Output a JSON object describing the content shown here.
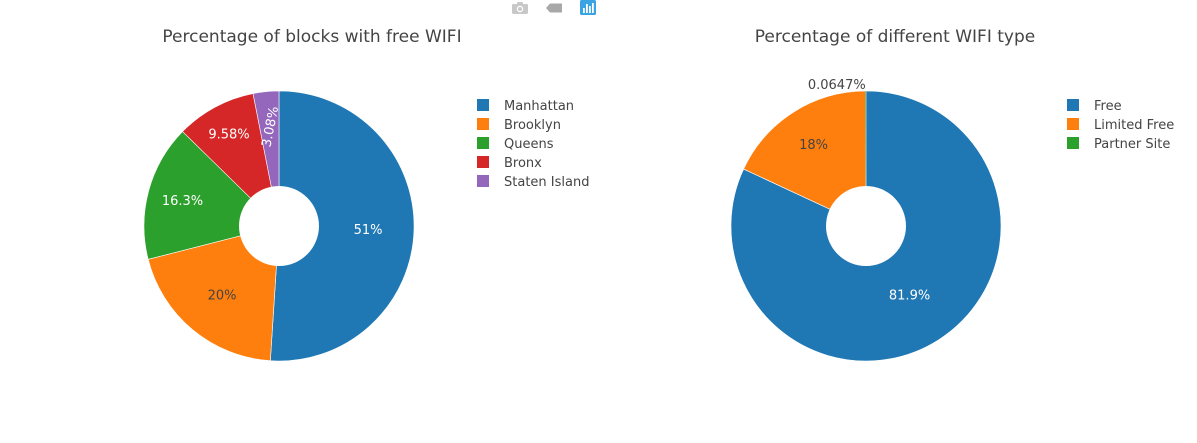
{
  "toolbar": {
    "buttons": [
      {
        "icon": "camera-icon",
        "label": ""
      },
      {
        "icon": "tag-icon",
        "label": ""
      },
      {
        "icon": "bar-chart-icon",
        "label": ""
      }
    ],
    "colors": {
      "inactive": "#c8c8c8",
      "active": "#3aa3e3"
    }
  },
  "chart_data": [
    {
      "type": "pie",
      "title": "Percentage of blocks with free WIFI",
      "hole": true,
      "sort": "descending",
      "direction": "clockwise",
      "labels": [
        "Manhattan",
        "Brooklyn",
        "Queens",
        "Bronx",
        "Staten Island"
      ],
      "values": [
        51,
        20,
        16.3,
        9.58,
        3.08
      ],
      "text_labels": [
        "51%",
        "20%",
        "16.3%",
        "9.58%",
        "3.08%"
      ],
      "colors": [
        "#1f77b4",
        "#ff7f0e",
        "#2ca02c",
        "#d62728",
        "#9467bd"
      ],
      "legend": {
        "position": "right",
        "entries": [
          "Manhattan",
          "Brooklyn",
          "Queens",
          "Bronx",
          "Staten Island"
        ]
      }
    },
    {
      "type": "pie",
      "title": "Percentage of different WIFI type",
      "hole": true,
      "sort": "descending",
      "direction": "clockwise",
      "labels": [
        "Free",
        "Limited Free",
        "Partner Site"
      ],
      "values": [
        81.9,
        18,
        0.0647
      ],
      "text_labels": [
        "81.9%",
        "18%",
        "0.0647%"
      ],
      "colors": [
        "#1f77b4",
        "#ff7f0e",
        "#2ca02c"
      ],
      "legend": {
        "position": "right",
        "entries": [
          "Free",
          "Limited Free",
          "Partner Site"
        ]
      }
    }
  ]
}
